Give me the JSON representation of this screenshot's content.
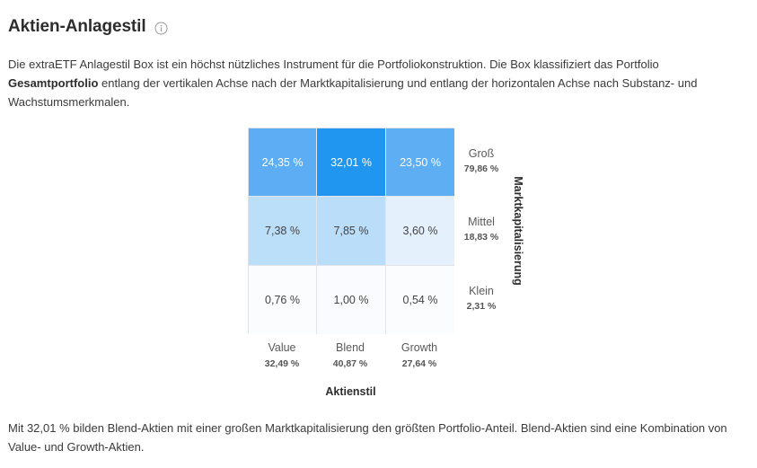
{
  "header": {
    "title": "Aktien-Anlagestil",
    "info_icon": "info-circle-icon"
  },
  "intro": {
    "part1": "Die extraETF Anlagestil Box ist ein höchst nützliches Instrument für die Portfoliokonstruktion. Die Box klassifiziert das Portfolio ",
    "portfolio_name": "Gesamtportfolio",
    "part2": " entlang der vertikalen Achse nach der Marktkapitalisierung und entlang der horizontalen Achse nach Substanz- und Wachstumsmerkmalen."
  },
  "style_box": {
    "cells": [
      [
        "24,35 %",
        "32,01 %",
        "23,50 %"
      ],
      [
        "7,38 %",
        "7,85 %",
        "3,60 %"
      ],
      [
        "0,76 %",
        "1,00 %",
        "0,54 %"
      ]
    ],
    "values": [
      [
        24.35,
        32.01,
        23.5
      ],
      [
        7.38,
        7.85,
        3.6
      ],
      [
        0.76,
        1.0,
        0.54
      ]
    ],
    "cell_colors": [
      [
        "#5cadf3",
        "#2196f0",
        "#5eaef3"
      ],
      [
        "#bcdff9",
        "#badef9",
        "#e4f1fd"
      ],
      [
        "#fafcfe",
        "#f9fbfe",
        "#fbfcfe"
      ]
    ],
    "rows": [
      {
        "name": "Groß",
        "pct": "79,86 %"
      },
      {
        "name": "Mittel",
        "pct": "18,83 %"
      },
      {
        "name": "Klein",
        "pct": "2,31 %"
      }
    ],
    "columns": [
      {
        "name": "Value",
        "pct": "32,49 %"
      },
      {
        "name": "Blend",
        "pct": "40,87 %"
      },
      {
        "name": "Growth",
        "pct": "27,64 %"
      }
    ],
    "x_axis_title": "Aktienstil",
    "y_axis_title": "Marktkapitalisierung"
  },
  "summary": "Mit 32,01 % bilden Blend-Aktien mit einer großen Marktkapitalisierung den größten Portfolio-Anteil. Blend-Aktien sind eine Kombination von Value- und Growth-Aktien."
}
